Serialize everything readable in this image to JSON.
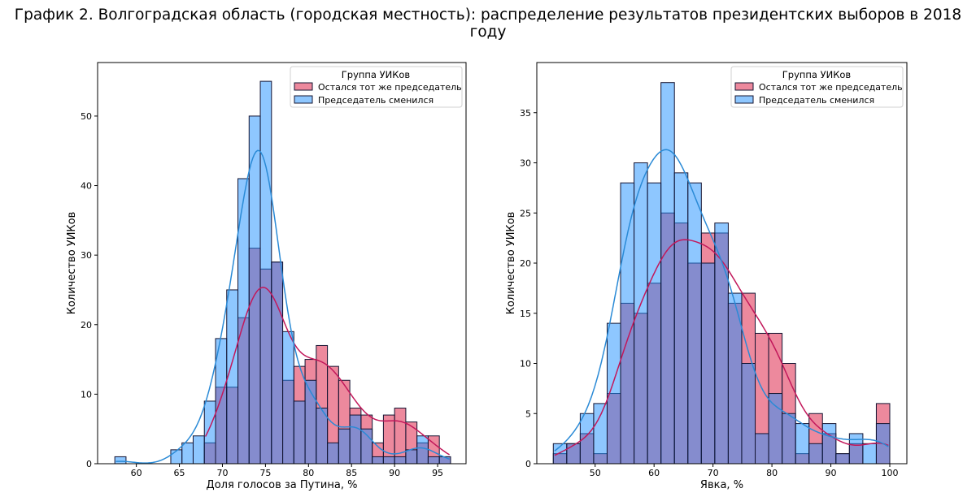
{
  "title": "График 2. Волгоградская область (городская местность): распределение результатов президентских выборов в 2018 году",
  "colors": {
    "kept": "#dc143c",
    "changed": "#1e90ff",
    "kept_line": "#c2185b",
    "changed_line": "#2a8ad6"
  },
  "chart_data": [
    {
      "type": "histogram",
      "xlabel": "Доля голосов за Путина, %",
      "ylabel": "Количество УИКов",
      "xlim": [
        55.5,
        98.3
      ],
      "ylim": [
        0,
        57.7
      ],
      "xticks": [
        60,
        65,
        70,
        75,
        80,
        85,
        90,
        95
      ],
      "yticks": [
        0,
        10,
        20,
        30,
        40,
        50
      ],
      "bin_start": 57.5,
      "bin_width": 1.3,
      "legend": {
        "title": "Группа УИКов",
        "placement": "top-right"
      },
      "series": [
        {
          "name": "Остался тот же председатель",
          "key": "kept",
          "values": [
            0,
            0,
            0,
            0,
            0,
            0,
            0,
            0,
            3,
            11,
            11,
            21,
            31,
            28,
            29,
            12,
            14,
            15,
            17,
            14,
            12,
            8,
            7,
            3,
            7,
            8,
            6,
            3,
            4,
            1
          ]
        },
        {
          "name": "Председатель сменился",
          "key": "changed",
          "values": [
            1,
            0,
            0,
            0,
            0,
            2,
            3,
            4,
            9,
            18,
            25,
            41,
            50,
            55,
            29,
            19,
            9,
            12,
            8,
            3,
            5,
            7,
            5,
            1,
            1,
            1,
            2,
            4,
            1,
            1
          ]
        }
      ]
    },
    {
      "type": "histogram",
      "xlabel": "Явка, %",
      "ylabel": "Количество УИКов",
      "xlim": [
        40.1,
        102.9
      ],
      "ylim": [
        0,
        40.0
      ],
      "xticks": [
        50,
        60,
        70,
        80,
        90,
        100
      ],
      "yticks": [
        0,
        5,
        10,
        15,
        20,
        25,
        30,
        35
      ],
      "bin_start": 42.9,
      "bin_width": 2.284,
      "legend": {
        "title": "Группа УИКов",
        "placement": "top-right"
      },
      "series": [
        {
          "name": "Остался тот же председатель",
          "key": "kept",
          "values": [
            1,
            2,
            3,
            1,
            7,
            16,
            15,
            18,
            25,
            24,
            20,
            23,
            23,
            16,
            17,
            13,
            13,
            10,
            1,
            5,
            3,
            1,
            2,
            0,
            6
          ]
        },
        {
          "name": "Председатель сменился",
          "key": "changed",
          "values": [
            2,
            2,
            5,
            6,
            14,
            28,
            30,
            28,
            38,
            29,
            28,
            20,
            24,
            17,
            10,
            3,
            7,
            5,
            4,
            2,
            4,
            1,
            3,
            2,
            4
          ]
        }
      ]
    }
  ]
}
